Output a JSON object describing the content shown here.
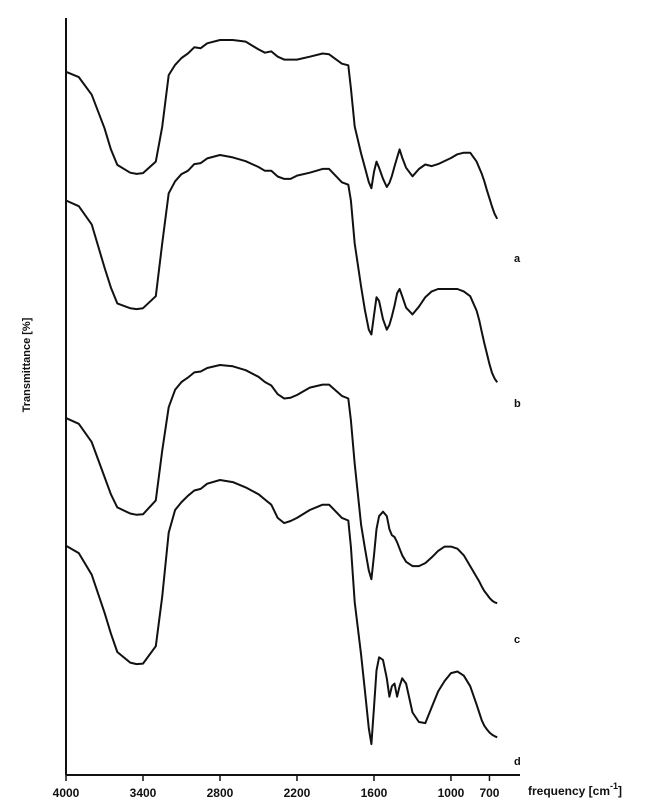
{
  "chart_data": {
    "type": "line",
    "xlabel": "frequency [cm",
    "xlabel_sup": "-1",
    "xlabel_close": "]",
    "ylabel": "Transmittance [%]",
    "x_ticks": [
      "4000",
      "3400",
      "2800",
      "2200",
      "1600",
      "1000",
      "700"
    ],
    "x_tick_values": [
      4000,
      3400,
      2800,
      2200,
      1600,
      1000,
      700
    ],
    "xlim": [
      4000,
      500
    ],
    "x_reversed": true,
    "y_tick_labels": false,
    "series": [
      {
        "name": "a",
        "offset": 0,
        "values": [
          [
            4000,
            690
          ],
          [
            3900,
            677
          ],
          [
            3800,
            634
          ],
          [
            3700,
            552
          ],
          [
            3650,
            500
          ],
          [
            3600,
            462
          ],
          [
            3500,
            443
          ],
          [
            3450,
            440
          ],
          [
            3400,
            442
          ],
          [
            3300,
            470
          ],
          [
            3250,
            555
          ],
          [
            3200,
            682
          ],
          [
            3150,
            707
          ],
          [
            3100,
            724
          ],
          [
            3050,
            735
          ],
          [
            3000,
            750
          ],
          [
            2950,
            748
          ],
          [
            2900,
            760
          ],
          [
            2800,
            768
          ],
          [
            2700,
            768
          ],
          [
            2600,
            764
          ],
          [
            2500,
            745
          ],
          [
            2450,
            737
          ],
          [
            2400,
            740
          ],
          [
            2350,
            727
          ],
          [
            2300,
            720
          ],
          [
            2200,
            720
          ],
          [
            2100,
            727
          ],
          [
            2000,
            735
          ],
          [
            1950,
            733
          ],
          [
            1850,
            710
          ],
          [
            1800,
            706
          ],
          [
            1780,
            650
          ],
          [
            1750,
            556
          ],
          [
            1700,
            490
          ],
          [
            1670,
            455
          ],
          [
            1640,
            420
          ],
          [
            1620,
            405
          ],
          [
            1600,
            445
          ],
          [
            1580,
            470
          ],
          [
            1560,
            455
          ],
          [
            1530,
            428
          ],
          [
            1500,
            408
          ],
          [
            1480,
            418
          ],
          [
            1460,
            435
          ],
          [
            1440,
            458
          ],
          [
            1420,
            480
          ],
          [
            1400,
            500
          ],
          [
            1380,
            480
          ],
          [
            1350,
            455
          ],
          [
            1300,
            434
          ],
          [
            1250,
            452
          ],
          [
            1200,
            463
          ],
          [
            1150,
            459
          ],
          [
            1100,
            464
          ],
          [
            1000,
            479
          ],
          [
            950,
            488
          ],
          [
            900,
            492
          ],
          [
            850,
            492
          ],
          [
            800,
            470
          ],
          [
            780,
            455
          ],
          [
            760,
            440
          ],
          [
            740,
            422
          ],
          [
            720,
            400
          ],
          [
            700,
            380
          ],
          [
            680,
            360
          ],
          [
            660,
            342
          ],
          [
            640,
            330
          ]
        ]
      },
      {
        "name": "b",
        "offset": 0,
        "values": [
          [
            4000,
            560
          ],
          [
            3900,
            548
          ],
          [
            3800,
            510
          ],
          [
            3700,
            420
          ],
          [
            3650,
            378
          ],
          [
            3600,
            345
          ],
          [
            3500,
            335
          ],
          [
            3450,
            333
          ],
          [
            3400,
            335
          ],
          [
            3300,
            360
          ],
          [
            3250,
            470
          ],
          [
            3200,
            575
          ],
          [
            3150,
            600
          ],
          [
            3100,
            615
          ],
          [
            3050,
            622
          ],
          [
            3000,
            636
          ],
          [
            2950,
            638
          ],
          [
            2900,
            648
          ],
          [
            2800,
            655
          ],
          [
            2700,
            650
          ],
          [
            2600,
            642
          ],
          [
            2500,
            630
          ],
          [
            2450,
            622
          ],
          [
            2400,
            622
          ],
          [
            2350,
            610
          ],
          [
            2300,
            605
          ],
          [
            2250,
            605
          ],
          [
            2200,
            612
          ],
          [
            2100,
            618
          ],
          [
            2000,
            626
          ],
          [
            1950,
            626
          ],
          [
            1850,
            598
          ],
          [
            1800,
            593
          ],
          [
            1780,
            560
          ],
          [
            1750,
            470
          ],
          [
            1700,
            380
          ],
          [
            1670,
            330
          ],
          [
            1640,
            290
          ],
          [
            1620,
            280
          ],
          [
            1600,
            320
          ],
          [
            1580,
            358
          ],
          [
            1560,
            350
          ],
          [
            1530,
            312
          ],
          [
            1500,
            290
          ],
          [
            1480,
            300
          ],
          [
            1460,
            318
          ],
          [
            1440,
            340
          ],
          [
            1420,
            366
          ],
          [
            1400,
            375
          ],
          [
            1380,
            360
          ],
          [
            1350,
            336
          ],
          [
            1300,
            322
          ],
          [
            1250,
            338
          ],
          [
            1200,
            358
          ],
          [
            1150,
            370
          ],
          [
            1100,
            375
          ],
          [
            1000,
            375
          ],
          [
            950,
            375
          ],
          [
            900,
            370
          ],
          [
            850,
            360
          ],
          [
            800,
            330
          ],
          [
            780,
            310
          ],
          [
            760,
            285
          ],
          [
            740,
            262
          ],
          [
            720,
            240
          ],
          [
            700,
            218
          ],
          [
            680,
            200
          ],
          [
            660,
            188
          ],
          [
            640,
            180
          ]
        ]
      },
      {
        "name": "c",
        "offset": 0,
        "values": [
          [
            4000,
            545
          ],
          [
            3900,
            532
          ],
          [
            3800,
            490
          ],
          [
            3700,
            410
          ],
          [
            3650,
            370
          ],
          [
            3600,
            340
          ],
          [
            3500,
            326
          ],
          [
            3450,
            323
          ],
          [
            3400,
            324
          ],
          [
            3300,
            356
          ],
          [
            3250,
            470
          ],
          [
            3200,
            570
          ],
          [
            3150,
            610
          ],
          [
            3100,
            628
          ],
          [
            3050,
            638
          ],
          [
            3000,
            650
          ],
          [
            2950,
            652
          ],
          [
            2900,
            660
          ],
          [
            2800,
            667
          ],
          [
            2700,
            664
          ],
          [
            2600,
            655
          ],
          [
            2500,
            640
          ],
          [
            2450,
            628
          ],
          [
            2400,
            620
          ],
          [
            2350,
            600
          ],
          [
            2300,
            590
          ],
          [
            2250,
            592
          ],
          [
            2200,
            598
          ],
          [
            2100,
            615
          ],
          [
            2000,
            622
          ],
          [
            1950,
            622
          ],
          [
            1850,
            596
          ],
          [
            1800,
            590
          ],
          [
            1780,
            540
          ],
          [
            1750,
            440
          ],
          [
            1700,
            300
          ],
          [
            1670,
            245
          ],
          [
            1640,
            195
          ],
          [
            1620,
            175
          ],
          [
            1600,
            230
          ],
          [
            1580,
            290
          ],
          [
            1560,
            320
          ],
          [
            1530,
            330
          ],
          [
            1500,
            320
          ],
          [
            1480,
            290
          ],
          [
            1460,
            276
          ],
          [
            1440,
            272
          ],
          [
            1420,
            260
          ],
          [
            1400,
            245
          ],
          [
            1380,
            230
          ],
          [
            1350,
            215
          ],
          [
            1300,
            205
          ],
          [
            1250,
            205
          ],
          [
            1200,
            212
          ],
          [
            1150,
            225
          ],
          [
            1100,
            240
          ],
          [
            1050,
            250
          ],
          [
            1000,
            250
          ],
          [
            950,
            245
          ],
          [
            900,
            230
          ],
          [
            850,
            205
          ],
          [
            800,
            180
          ],
          [
            780,
            170
          ],
          [
            760,
            158
          ],
          [
            740,
            148
          ],
          [
            720,
            140
          ],
          [
            700,
            132
          ],
          [
            680,
            126
          ],
          [
            660,
            122
          ],
          [
            640,
            120
          ]
        ]
      },
      {
        "name": "d",
        "offset": 0,
        "values": [
          [
            4000,
            427
          ],
          [
            3900,
            413
          ],
          [
            3800,
            372
          ],
          [
            3700,
            300
          ],
          [
            3650,
            260
          ],
          [
            3600,
            225
          ],
          [
            3500,
            205
          ],
          [
            3450,
            202
          ],
          [
            3400,
            203
          ],
          [
            3300,
            236
          ],
          [
            3250,
            330
          ],
          [
            3200,
            452
          ],
          [
            3150,
            495
          ],
          [
            3100,
            510
          ],
          [
            3050,
            522
          ],
          [
            3000,
            532
          ],
          [
            2950,
            535
          ],
          [
            2900,
            545
          ],
          [
            2800,
            552
          ],
          [
            2700,
            548
          ],
          [
            2600,
            538
          ],
          [
            2500,
            525
          ],
          [
            2450,
            515
          ],
          [
            2400,
            505
          ],
          [
            2350,
            480
          ],
          [
            2300,
            470
          ],
          [
            2250,
            474
          ],
          [
            2200,
            480
          ],
          [
            2100,
            495
          ],
          [
            2000,
            505
          ],
          [
            1950,
            505
          ],
          [
            1850,
            480
          ],
          [
            1800,
            475
          ],
          [
            1780,
            425
          ],
          [
            1750,
            320
          ],
          [
            1700,
            220
          ],
          [
            1670,
            150
          ],
          [
            1640,
            80
          ],
          [
            1620,
            50
          ],
          [
            1600,
            120
          ],
          [
            1580,
            190
          ],
          [
            1560,
            215
          ],
          [
            1530,
            210
          ],
          [
            1500,
            175
          ],
          [
            1480,
            140
          ],
          [
            1460,
            160
          ],
          [
            1440,
            165
          ],
          [
            1420,
            140
          ],
          [
            1400,
            160
          ],
          [
            1380,
            175
          ],
          [
            1350,
            165
          ],
          [
            1300,
            110
          ],
          [
            1250,
            92
          ],
          [
            1200,
            90
          ],
          [
            1150,
            120
          ],
          [
            1100,
            150
          ],
          [
            1050,
            170
          ],
          [
            1000,
            185
          ],
          [
            950,
            188
          ],
          [
            900,
            180
          ],
          [
            850,
            160
          ],
          [
            800,
            125
          ],
          [
            780,
            110
          ],
          [
            760,
            95
          ],
          [
            740,
            85
          ],
          [
            720,
            78
          ],
          [
            700,
            72
          ],
          [
            680,
            68
          ],
          [
            660,
            65
          ],
          [
            640,
            63
          ]
        ]
      }
    ]
  }
}
